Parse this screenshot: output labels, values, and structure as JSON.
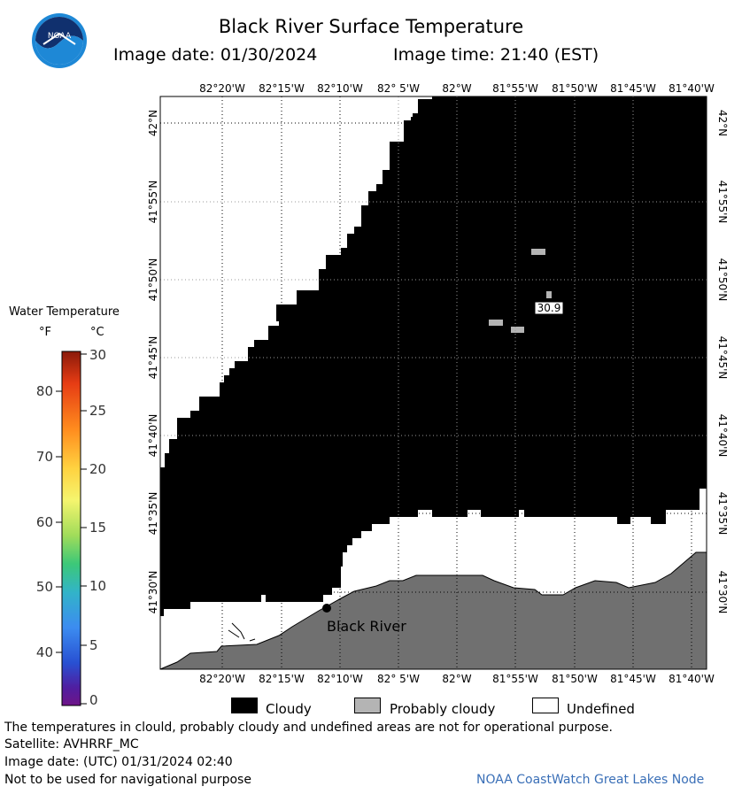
{
  "header": {
    "title": "Black River Surface Temperature",
    "image_date": "Image date: 01/30/2024",
    "image_time": "Image time: 21:40 (EST)",
    "logo_text": "NOAA",
    "logo_icon": "noaa-logo-icon"
  },
  "map": {
    "lon_labels": [
      "82°20'W",
      "82°15'W",
      "82°10'W",
      "82° 5'W",
      "82°W",
      "81°55'W",
      "81°50'W",
      "81°45'W",
      "81°40'W"
    ],
    "lat_labels": [
      "42°N",
      "41°55'N",
      "41°50'N",
      "41°45'N",
      "41°40'N",
      "41°35'N",
      "41°30'N"
    ],
    "station_label": "Black River",
    "temperature_readout": "30.9",
    "colors": {
      "cloudy": "#000000",
      "probably_cloudy": "#b4b4b4",
      "undefined": "#ffffff",
      "land": "#707070"
    }
  },
  "legend": {
    "title": "Water Temperature",
    "unit_f": "°F",
    "unit_c": "°C",
    "f_ticks": [
      "80",
      "70",
      "60",
      "50",
      "40"
    ],
    "c_ticks": [
      "30",
      "25",
      "20",
      "15",
      "10",
      "5",
      "0"
    ],
    "colorbar_colors": [
      "#8b1a0a",
      "#e63c14",
      "#ff8c1e",
      "#ffd240",
      "#f5f56e",
      "#a0dc5a",
      "#3cc878",
      "#32b4c8",
      "#3c8cf0",
      "#2850d2",
      "#501ea0",
      "#6e1487"
    ]
  },
  "key": {
    "cloudy": "Cloudy",
    "probably_cloudy": "Probably cloudy",
    "undefined": "Undefined"
  },
  "footer": {
    "disclaimer": "The temperatures in clould, probably cloudy and undefined areas are not for operational purpose.",
    "satellite": "Satellite: AVHRRF_MC",
    "utc_date": "Image date: (UTC) 01/31/2024  02:40",
    "navigation": "Not to be used for navigational purpose",
    "credit": "NOAA CoastWatch Great Lakes Node"
  }
}
